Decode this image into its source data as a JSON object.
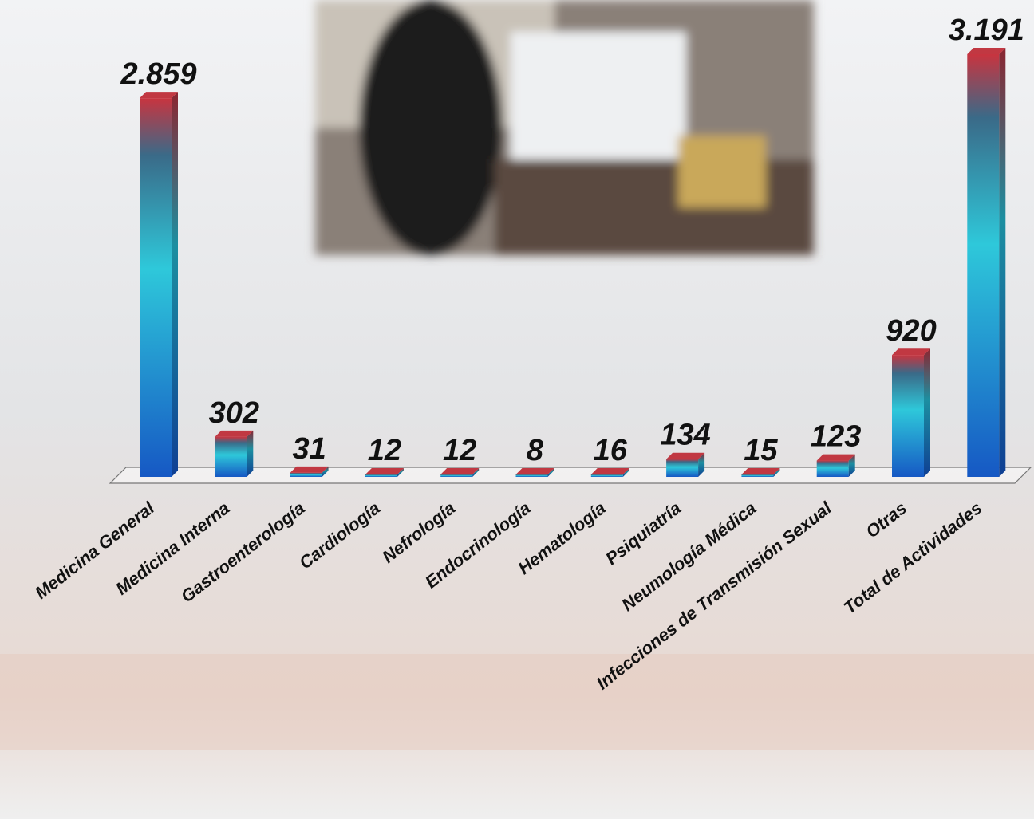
{
  "chart_data": {
    "type": "bar",
    "categories": [
      "Medicina General",
      "Medicina Interna",
      "Gastroenterología",
      "Cardiología",
      "Nefrología",
      "Endocrinología",
      "Hematología",
      "Psiquiatría",
      "Neumología Médica",
      "Infecciones de Transmisión Sexual",
      "Otras",
      "Total de Actividades"
    ],
    "values": [
      2859,
      302,
      31,
      12,
      12,
      8,
      16,
      134,
      15,
      123,
      920,
      3191
    ],
    "value_labels": [
      "2.859",
      "302",
      "31",
      "12",
      "12",
      "8",
      "16",
      "134",
      "15",
      "123",
      "920",
      "3.191"
    ]
  }
}
